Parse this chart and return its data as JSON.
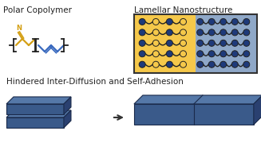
{
  "title_left": "Polar Copolymer",
  "title_right": "Lamellar Nanostructure",
  "title_bottom": "Hindered Inter-Diffusion and Self-Adhesion",
  "bg_color": "#ffffff",
  "yellow_bg": "#f5c84a",
  "blue_bg": "#8fa8c8",
  "dark_blue_dot": "#1e3a7a",
  "yellow_dot": "#f5c84a",
  "slab_top": "#5578a8",
  "slab_front": "#3a5a8a",
  "slab_side": "#2a4070",
  "text_color": "#222222",
  "arrow_color": "#333333",
  "bond_yellow": "#d4a017",
  "bond_blue": "#3a6abf",
  "bond_black": "#222222"
}
